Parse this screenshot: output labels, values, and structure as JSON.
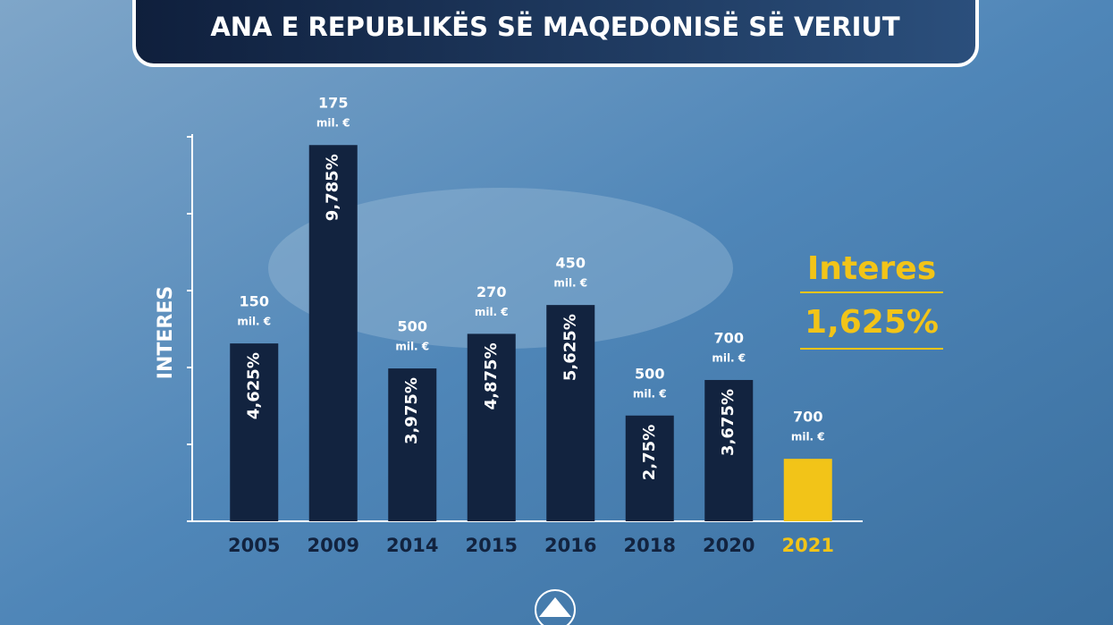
{
  "chart_data": {
    "type": "bar",
    "title": "ANA E REPUBLIKËS SË MAQEDONISË SË VERIUT",
    "y_label": "INTERES",
    "categories": [
      "2005",
      "2009",
      "2014",
      "2015",
      "2016",
      "2018",
      "2020",
      "2021"
    ],
    "values": [
      4.625,
      9.785,
      3.975,
      4.875,
      5.625,
      2.75,
      3.675,
      1.625
    ],
    "value_labels": [
      "4,625%",
      "9,785%",
      "3,975%",
      "4,875%",
      "5,625%",
      "2,75%",
      "3,675%",
      "1,625%"
    ],
    "amounts": [
      150,
      175,
      500,
      270,
      450,
      500,
      700,
      700
    ],
    "amount_unit": "mil. €",
    "colors": [
      "#12233f",
      "#12233f",
      "#12233f",
      "#12233f",
      "#12233f",
      "#12233f",
      "#12233f",
      "#f2c418"
    ],
    "ylim": [
      0,
      10
    ],
    "yticks": [
      0,
      2,
      4,
      6,
      8,
      10
    ],
    "annotation": {
      "title": "Interes",
      "value": "1,625%"
    }
  }
}
